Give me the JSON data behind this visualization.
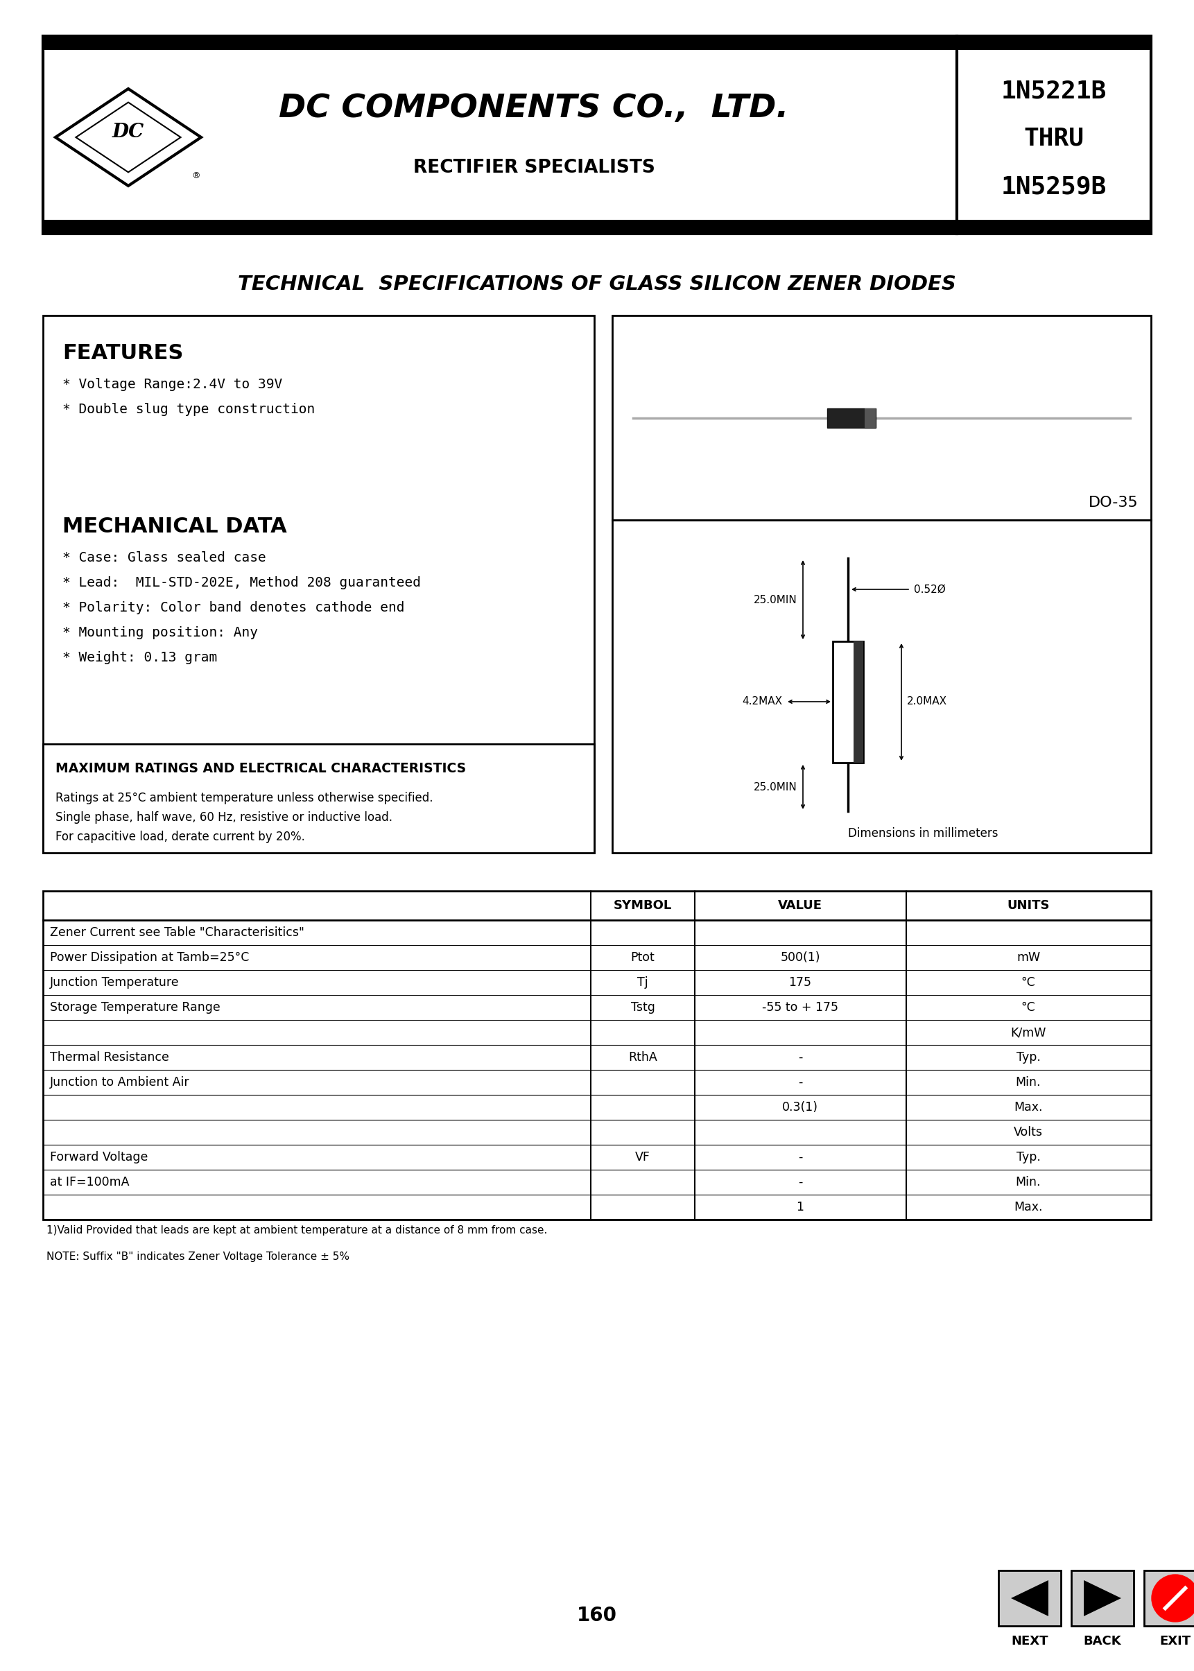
{
  "bg_color": "#ffffff",
  "company_name": "DC COMPONENTS CO.,  LTD.",
  "subtitle": "RECTIFIER SPECIALISTS",
  "part_range_line1": "1N5221B",
  "part_range_line2": "THRU",
  "part_range_line3": "1N5259B",
  "page_title": "TECHNICAL  SPECIFICATIONS OF GLASS SILICON ZENER DIODES",
  "features_title": "FEATURES",
  "features_items": [
    "* Voltage Range:2.4V to 39V",
    "* Double slug type construction"
  ],
  "mech_title": "MECHANICAL DATA",
  "mech_items": [
    "* Case: Glass sealed case",
    "* Lead:  MIL-STD-202E, Method 208 guaranteed",
    "* Polarity: Color band denotes cathode end",
    "* Mounting position: Any",
    "* Weight: 0.13 gram"
  ],
  "max_ratings_title": "MAXIMUM RATINGS AND ELECTRICAL CHARACTERISTICS",
  "max_ratings_lines": [
    "Ratings at 25°C ambient temperature unless otherwise specified.",
    "Single phase, half wave, 60 Hz, resistive or inductive load.",
    "For capacitive load, derate current by 20%."
  ],
  "package_label": "DO-35",
  "dim_label": "Dimensions in millimeters",
  "footnote1": "1)Valid Provided that leads are kept at ambient temperature at a distance of 8 mm from case.",
  "footnote2": "NOTE: Suffix \"B\" indicates Zener Voltage Tolerance ± 5%",
  "page_number": "160",
  "nav_labels": [
    "NEXT",
    "BACK",
    "EXIT"
  ],
  "table_row_defs": [
    {
      "desc": "Zener Current see Table \"Characterisitics\"",
      "sym": "",
      "val": "",
      "unit": "",
      "tall": false
    },
    {
      "desc": "Power Dissipation at Tamb=25°C",
      "sym": "Ptot",
      "val": "500(1)",
      "unit": "mW",
      "tall": false
    },
    {
      "desc": "Junction Temperature",
      "sym": "Tj",
      "val": "175",
      "unit": "°C",
      "tall": false
    },
    {
      "desc": "Storage Temperature Range",
      "sym": "Tstg",
      "val": "-55 to + 175",
      "unit": "°C",
      "tall": false
    },
    {
      "desc": "",
      "sym": "",
      "val": "",
      "unit": "K/mW",
      "tall": false
    },
    {
      "desc": "Thermal Resistance",
      "sym": "RthA",
      "val": "-",
      "unit": "Typ.",
      "tall": false
    },
    {
      "desc": "Junction to Ambient Air",
      "sym": "",
      "val": "-",
      "unit": "Min.",
      "tall": false
    },
    {
      "desc": "",
      "sym": "",
      "val": "0.3(1)",
      "unit": "Max.",
      "tall": false
    },
    {
      "desc": "",
      "sym": "",
      "val": "",
      "unit": "Volts",
      "tall": false
    },
    {
      "desc": "Forward Voltage",
      "sym": "VF",
      "val": "-",
      "unit": "Typ.",
      "tall": false
    },
    {
      "desc": "at IF=100mA",
      "sym": "",
      "val": "-",
      "unit": "Min.",
      "tall": false
    },
    {
      "desc": "",
      "sym": "",
      "val": "1",
      "unit": "Max.",
      "tall": false
    }
  ]
}
